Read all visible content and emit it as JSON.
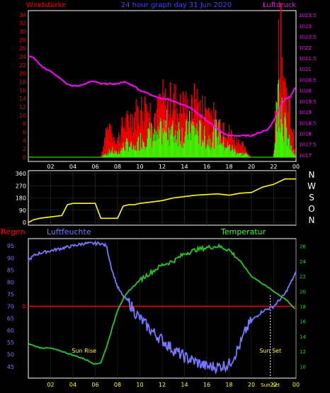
{
  "header": {
    "left_label": "Windstärke",
    "center_label": "24 hour graph day  31 Jun 2020",
    "right_label": "Luftdruck"
  },
  "colors": {
    "background": "#000000",
    "frame": "#ffffff",
    "wind_avg": "#33ff00",
    "wind_gust": "#ee0000",
    "pressure": "#ff00ff",
    "direction": "#ffff00",
    "humidity": "#7777ff",
    "temperature": "#22cc22",
    "rain": "#ff0000",
    "hour_label": "#ffff00",
    "grid": "#333333"
  },
  "x_axis": {
    "labels": [
      "02",
      "04",
      "06",
      "08",
      "10",
      "12",
      "14",
      "16",
      "18",
      "20",
      "22",
      "00"
    ]
  },
  "chart_data": [
    {
      "type": "bar",
      "name": "wind-pressure-panel",
      "left_axis_label": "Windstärke",
      "right_axis_label": "Luftdruck",
      "left_ticks": [
        "0",
        "2",
        "4",
        "6",
        "8",
        "10",
        "12",
        "14",
        "16",
        "18",
        "20",
        "22",
        "24",
        "26",
        "28",
        "30",
        "32",
        "34"
      ],
      "right_ticks": [
        "1017",
        "1017.5",
        "1018",
        "1018.5",
        "1019",
        "1019.5",
        "1020",
        "1020.5",
        "1021",
        "1021.5",
        "1022",
        "1022.5",
        "1023",
        "1023.5"
      ],
      "ylim_wind": [
        0,
        35
      ],
      "ylim_pressure": [
        1016.9,
        1023.7
      ],
      "pressure_series": {
        "hours": [
          0,
          0.5,
          1,
          1.5,
          2,
          2.5,
          3,
          3.5,
          4,
          4.5,
          5,
          5.5,
          6,
          6.5,
          7,
          7.5,
          8,
          8.5,
          9,
          9.5,
          10,
          10.5,
          11,
          11.5,
          12,
          12.5,
          13,
          13.5,
          14,
          14.5,
          15,
          15.5,
          16,
          16.5,
          17,
          17.5,
          18,
          18.5,
          19,
          19.5,
          20,
          20.5,
          21,
          21.5,
          22,
          22.5,
          23,
          23.5,
          24
        ],
        "values": [
          1021.6,
          1021.5,
          1021.2,
          1021.0,
          1020.9,
          1020.7,
          1020.5,
          1020.3,
          1020.2,
          1020.2,
          1020.3,
          1020.4,
          1020.4,
          1020.3,
          1020.3,
          1020.3,
          1020.3,
          1020.4,
          1020.3,
          1020.2,
          1020.0,
          1019.9,
          1019.8,
          1019.7,
          1019.6,
          1019.6,
          1019.5,
          1019.4,
          1019.3,
          1019.2,
          1019.0,
          1018.8,
          1018.6,
          1018.4,
          1018.2,
          1018.0,
          1017.9,
          1017.9,
          1017.9,
          1017.9,
          1017.9,
          1018.0,
          1018.1,
          1018.2,
          1018.6,
          1019.2,
          1019.6,
          1019.7,
          1020.2
        ]
      },
      "wind_avg_series": {
        "hours": [
          0,
          6.5,
          7,
          7.5,
          8,
          8.5,
          9,
          9.5,
          10,
          10.5,
          11,
          11.5,
          12,
          12.5,
          13,
          13.5,
          14,
          14.5,
          15,
          15.5,
          16,
          16.5,
          17,
          17.5,
          18,
          18.5,
          19,
          19.5,
          20,
          20.5,
          21,
          21.5,
          22,
          22.5,
          23,
          23.5,
          24
        ],
        "values": [
          0,
          0,
          1,
          2,
          1,
          3,
          4,
          2,
          5,
          6,
          7,
          5,
          8,
          9,
          7,
          8,
          6,
          9,
          8,
          7,
          5,
          6,
          8,
          4,
          3,
          2,
          1,
          1,
          0,
          0,
          0,
          0,
          0,
          22,
          9,
          3,
          0
        ]
      },
      "wind_gust_series": {
        "hours": [
          0,
          6.5,
          7,
          7.5,
          8,
          8.5,
          9,
          9.5,
          10,
          10.5,
          11,
          11.5,
          12,
          12.5,
          13,
          13.5,
          14,
          14.5,
          15,
          15.5,
          16,
          16.5,
          17,
          17.5,
          18,
          18.5,
          19,
          19.5,
          20,
          20.5,
          21,
          21.5,
          22,
          22.5,
          23,
          23.5,
          24
        ],
        "values": [
          0,
          0,
          8,
          6,
          5,
          9,
          10,
          12,
          13,
          14,
          13,
          12,
          16,
          14,
          17,
          13,
          15,
          12,
          16,
          13,
          14,
          12,
          9,
          10,
          7,
          5,
          4,
          2,
          0,
          0,
          0,
          0,
          0,
          34,
          20,
          12,
          0
        ]
      }
    },
    {
      "type": "line",
      "name": "wind-direction-panel",
      "left_ticks": [
        "0",
        "90",
        "180",
        "270",
        "360"
      ],
      "right_ticks": [
        "N",
        "W",
        "S",
        "O",
        "N"
      ],
      "ylim": [
        0,
        360
      ],
      "series": [
        {
          "hours": [
            0,
            0.5,
            1,
            2,
            3,
            3.5,
            4,
            4.5,
            5,
            5.5,
            6,
            6.5,
            7,
            7.5,
            8,
            8.5,
            9,
            9.5,
            10,
            11,
            12,
            13,
            14,
            15,
            16,
            17,
            18,
            19,
            20,
            21,
            22,
            23,
            24
          ],
          "values": [
            0,
            20,
            30,
            40,
            50,
            130,
            140,
            140,
            140,
            140,
            140,
            30,
            30,
            30,
            30,
            120,
            130,
            130,
            140,
            150,
            160,
            180,
            190,
            200,
            205,
            210,
            200,
            215,
            220,
            260,
            280,
            320,
            320
          ]
        }
      ]
    },
    {
      "type": "line",
      "name": "climate-panel",
      "title_left": "Regen",
      "title_center": "Luftfeuchte",
      "title_right": "Temperatur",
      "left_ticks": [
        "45",
        "50",
        "55",
        "60",
        "65",
        "70",
        "75",
        "80",
        "85",
        "90",
        "95"
      ],
      "right_ticks": [
        "10",
        "12",
        "14",
        "16",
        "18",
        "20",
        "22",
        "24",
        "26"
      ],
      "rain_ticks": [
        "0"
      ],
      "ylim_humidity": [
        42,
        98
      ],
      "ylim_temperature": [
        9,
        27
      ],
      "rain_value": 0,
      "annotations": [
        "Sun Rise",
        "Sun Set",
        "Sun Set"
      ],
      "series": [
        {
          "name": "Luftfeuchte",
          "hours": [
            0,
            0.5,
            1,
            2,
            3,
            4,
            5,
            6,
            6.5,
            7,
            7.5,
            8,
            8.5,
            9,
            9.5,
            10,
            11,
            12,
            13,
            14,
            15,
            16,
            17,
            18,
            18.5,
            19,
            19.5,
            20,
            21,
            22,
            23,
            24
          ],
          "values": [
            89,
            91,
            92,
            93,
            94,
            95,
            96,
            96,
            96,
            95,
            85,
            78,
            74,
            72,
            68,
            65,
            60,
            56,
            52,
            49,
            47,
            45,
            45,
            46,
            50,
            54,
            60,
            64,
            68,
            70,
            75,
            84
          ]
        },
        {
          "name": "Temperatur",
          "hours": [
            0,
            1,
            2,
            3,
            4,
            5,
            6,
            6.5,
            7,
            7.5,
            8,
            8.5,
            9,
            10,
            11,
            12,
            13,
            14,
            15,
            16,
            17,
            18,
            19,
            20,
            21,
            22,
            23,
            24
          ],
          "values": [
            13.0,
            12.5,
            12.4,
            12.0,
            11.5,
            11.0,
            10.3,
            10.5,
            12.5,
            15.0,
            17.5,
            19.0,
            20.0,
            21.5,
            22.5,
            23.5,
            24.0,
            25.0,
            25.5,
            25.8,
            26.0,
            25.5,
            24.0,
            22.0,
            21.0,
            20.0,
            19.0,
            17.5
          ]
        }
      ]
    }
  ]
}
